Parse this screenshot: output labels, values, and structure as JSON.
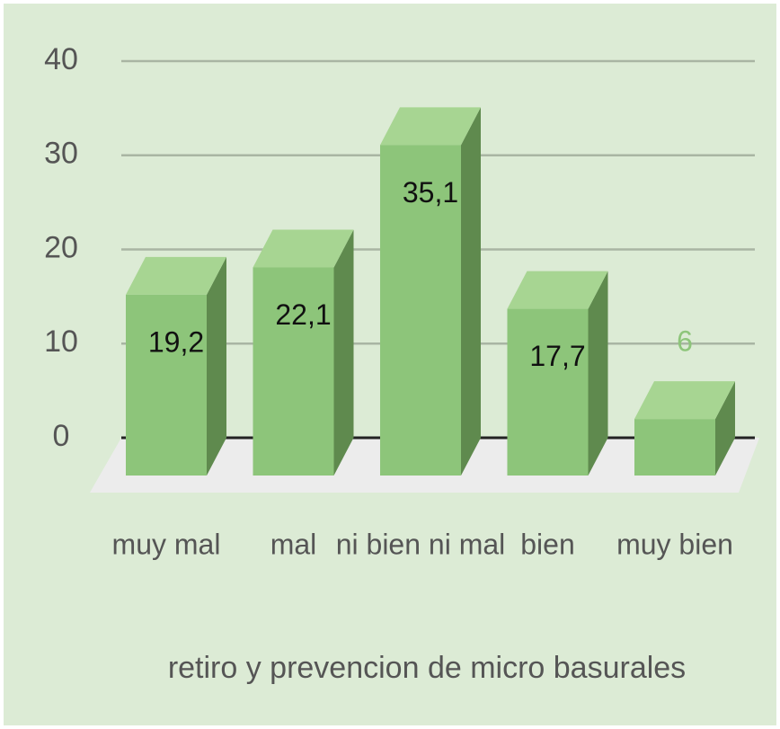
{
  "chart_data": {
    "type": "bar3d",
    "categories": [
      "muy mal",
      "mal",
      "ni bien ni mal",
      "bien",
      "muy bien"
    ],
    "values": [
      19.2,
      22.1,
      35.1,
      17.7,
      6
    ],
    "value_labels": [
      "19,2",
      "22,1",
      "35,1",
      "17,7",
      "6"
    ],
    "color": "#8dc57a",
    "ylim": [
      0,
      40
    ],
    "yticks": [
      0,
      10,
      20,
      30,
      40
    ],
    "grid": true,
    "x_label": "retiro y prevencion de micro basurales"
  }
}
